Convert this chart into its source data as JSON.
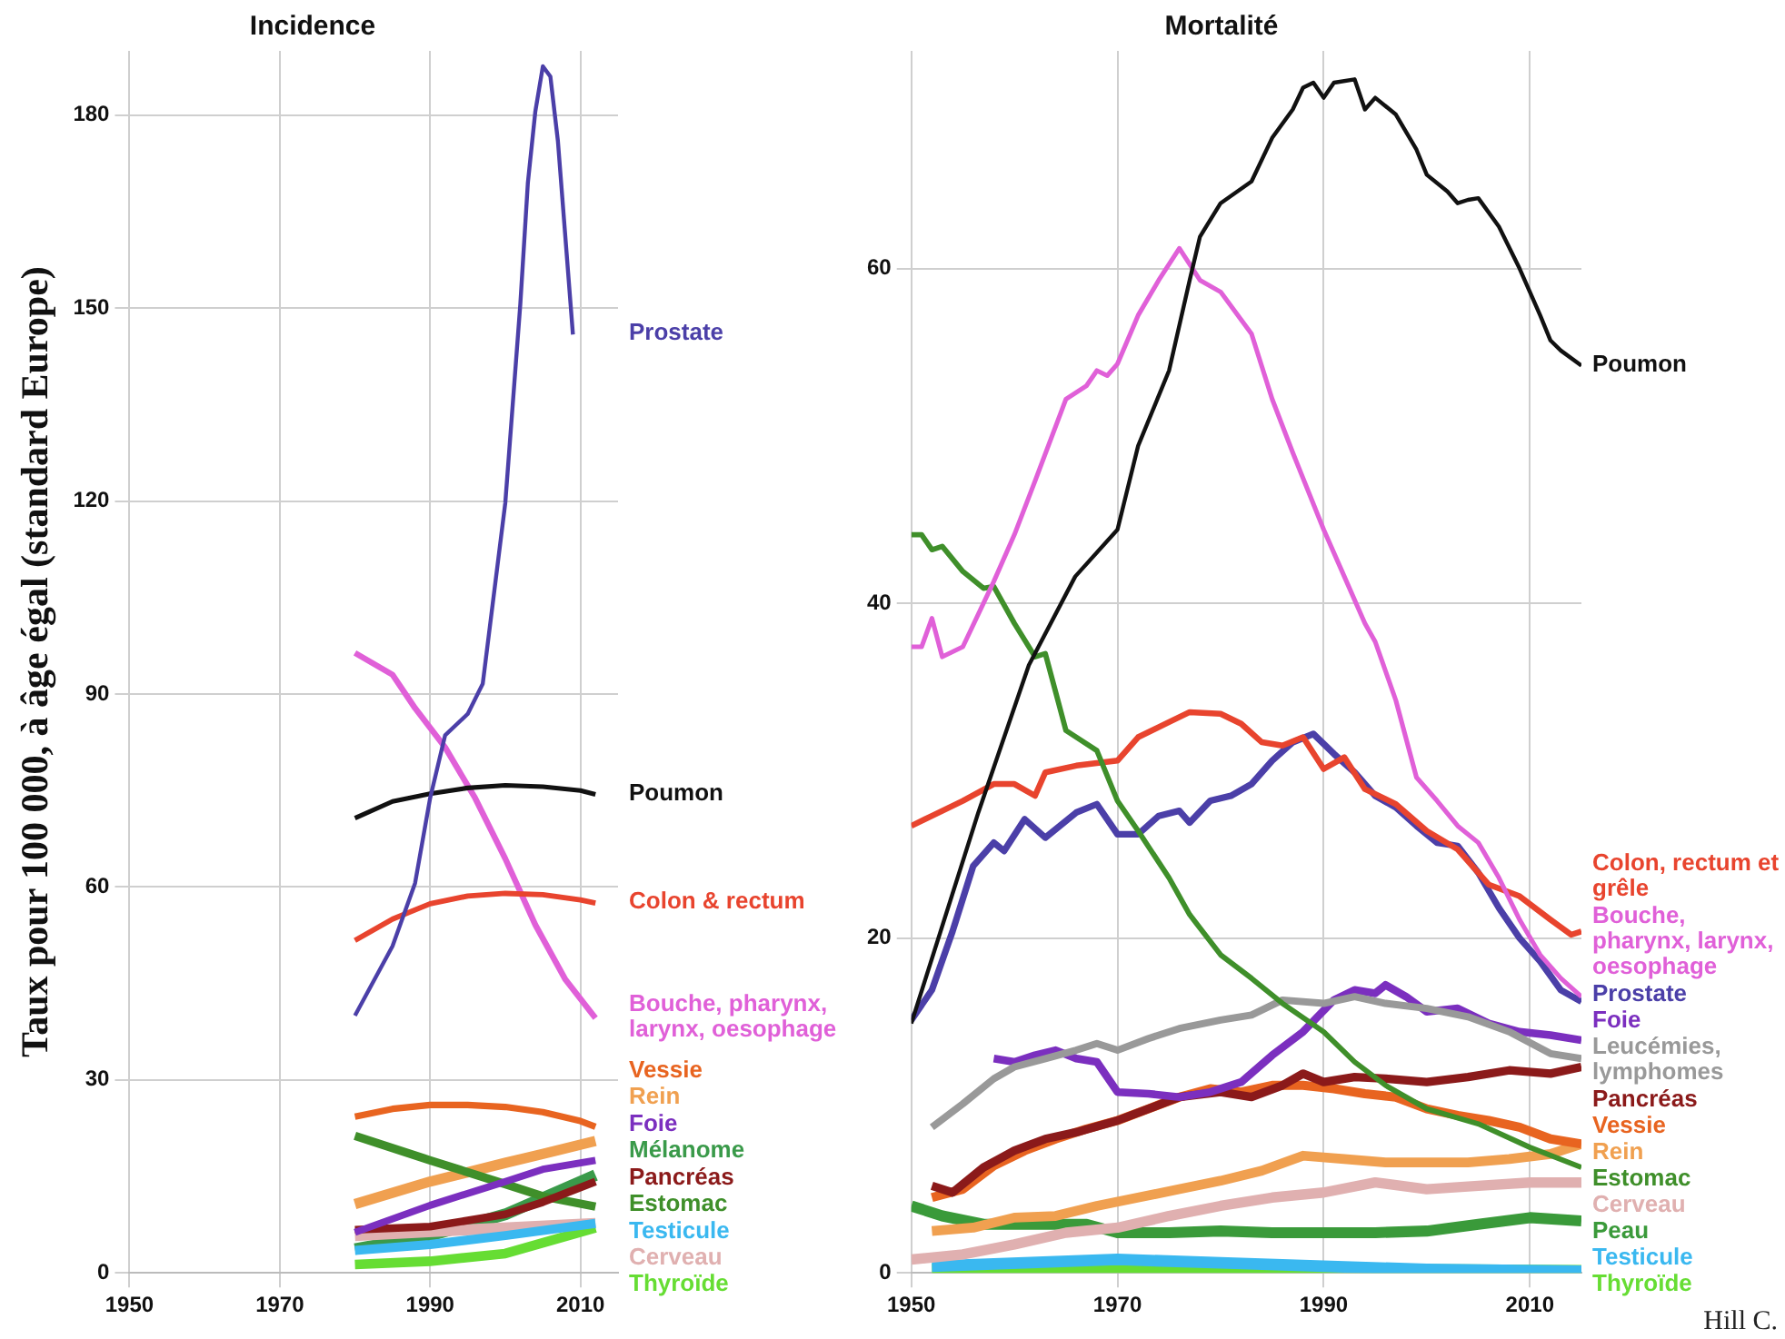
{
  "chart_data": [
    {
      "type": "line",
      "title": "Incidence",
      "ylabel": "Taux pour 100 000, à âge égal (standard Europe)",
      "xlim": [
        1950,
        2015
      ],
      "xticks": [
        1950,
        1970,
        1990,
        2010
      ],
      "ylim": [
        0,
        190
      ],
      "yticks": [
        0,
        30,
        60,
        90,
        120,
        150,
        180
      ],
      "grid": true,
      "legend": false,
      "series": [
        {
          "name": "Prostate",
          "color": "#4b3fa8",
          "x": [
            1980,
            1985,
            1988,
            1990,
            1992,
            1995,
            1997,
            2000,
            2002,
            2003,
            2004,
            2005,
            2006,
            2007,
            2009
          ],
          "values": [
            40,
            50.8,
            60.6,
            73.8,
            83.6,
            86.9,
            91.6,
            119.7,
            150.6,
            169.4,
            180.6,
            187.6,
            186,
            176,
            145.9
          ]
        },
        {
          "name": "Poumon",
          "color": "#111111",
          "x": [
            1980,
            1985,
            1990,
            1995,
            2000,
            2005,
            2010,
            2012
          ],
          "values": [
            70.7,
            73.3,
            74.5,
            75.4,
            75.8,
            75.6,
            75,
            74.4
          ]
        },
        {
          "name": "Colon & rectum",
          "color": "#e8442e",
          "x": [
            1980,
            1985,
            1990,
            1995,
            2000,
            2005,
            2010,
            2012
          ],
          "values": [
            51.7,
            55,
            57.4,
            58.6,
            59,
            58.8,
            58,
            57.5
          ]
        },
        {
          "name": "Bouche, pharynx, larynx, oesophage",
          "color": "#e060d8",
          "x": [
            1980,
            1985,
            1988,
            1992,
            1996,
            2000,
            2004,
            2008,
            2012
          ],
          "values": [
            96.4,
            93,
            87.8,
            81.7,
            73.8,
            64.4,
            54.1,
            45.6,
            39.6
          ]
        },
        {
          "name": "Vessie",
          "color": "#e86420",
          "x": [
            1980,
            1985,
            1990,
            1995,
            2000,
            2005,
            2010,
            2012
          ],
          "values": [
            24.3,
            25.5,
            26.1,
            26.1,
            25.8,
            25,
            23.6,
            22.7
          ]
        },
        {
          "name": "Foie",
          "color": "#7b2fbf",
          "x": [
            1980,
            1990,
            2000,
            2005,
            2012
          ],
          "values": [
            6.3,
            10.5,
            14.2,
            16.1,
            17.5
          ]
        },
        {
          "name": "Pancréas",
          "color": "#8b1a1a",
          "x": [
            1980,
            1990,
            2000,
            2005,
            2012
          ],
          "values": [
            6.7,
            7.2,
            9.1,
            11,
            14.2
          ]
        },
        {
          "name": "Estomac",
          "color": "#3f8f2a",
          "x": [
            1980,
            1990,
            2000,
            2005,
            2012
          ],
          "values": [
            21.3,
            17.5,
            13.8,
            11.9,
            10.3
          ]
        },
        {
          "name": "Testicule",
          "color": "#3ab8f0",
          "x": [
            1980,
            1990,
            2000,
            2012
          ],
          "values": [
            3.5,
            4.4,
            5.8,
            7.7
          ]
        },
        {
          "name": "Thyroïde",
          "color": "#66dd33",
          "x": [
            1980,
            1990,
            2000,
            2012
          ],
          "values": [
            1.3,
            1.8,
            3,
            7
          ]
        },
        {
          "name": "Rein",
          "color": "#f0a050",
          "x": [
            1980,
            1990,
            2000,
            2005,
            2012
          ],
          "values": [
            10.7,
            14.2,
            17.1,
            18.5,
            20.5
          ]
        },
        {
          "name": "Cerveau",
          "color": "#e0b0b0",
          "x": [
            1980,
            2012
          ],
          "values": [
            5.8,
            7.7
          ]
        },
        {
          "name": "Mélanome",
          "color": "#3a9a4a",
          "x": [
            1980,
            1990,
            2000,
            2012
          ],
          "values": [
            3.7,
            5.8,
            9.1,
            15.2
          ]
        }
      ]
    },
    {
      "type": "line",
      "title": "Mortalité",
      "xlim": [
        1950,
        2015
      ],
      "xticks": [
        1950,
        1970,
        1990,
        2010
      ],
      "ylim": [
        0,
        73
      ],
      "yticks": [
        0,
        20,
        40,
        60
      ],
      "grid": true,
      "legend": false,
      "annotations": [
        "Hill C."
      ],
      "series": [
        {
          "name": "Poumon",
          "color": "#111111",
          "x": [
            1950,
            1956.5,
            1961.4,
            1965.9,
            1970,
            1972,
            1975,
            1977,
            1978,
            1980,
            1983,
            1985,
            1987,
            1988,
            1989,
            1990,
            1991,
            1993,
            1994,
            1995,
            1997,
            1999,
            2000,
            2002,
            2003,
            2004,
            2005,
            2007,
            2009,
            2010,
            2011,
            2012,
            2013,
            2015
          ],
          "values": [
            14.9,
            27.5,
            36.3,
            41.6,
            44.4,
            49.4,
            53.9,
            59.3,
            61.9,
            63.9,
            65.2,
            67.8,
            69.5,
            70.8,
            71.1,
            70.2,
            71.1,
            71.3,
            69.5,
            70.2,
            69.2,
            67.1,
            65.6,
            64.6,
            63.9,
            64.1,
            64.2,
            62.5,
            60,
            58.6,
            57.2,
            55.7,
            55.1,
            54.2
          ]
        },
        {
          "name": "Bouche, pharynx, larynx, oesophage",
          "color": "#e060d8",
          "x": [
            1950,
            1951,
            1952,
            1953,
            1955,
            1958,
            1960,
            1962,
            1965,
            1967,
            1968,
            1969,
            1970,
            1972,
            1974,
            1976,
            1978,
            1980,
            1983,
            1985,
            1987,
            1990,
            1992,
            1994,
            1995,
            1997,
            1999,
            2001,
            2003,
            2005,
            2007,
            2009,
            2011,
            2013,
            2015
          ],
          "values": [
            37.4,
            37.4,
            39.1,
            36.8,
            37.4,
            41.3,
            44.1,
            47.3,
            52.2,
            53,
            53.9,
            53.6,
            54.3,
            57.2,
            59.3,
            61.2,
            59.3,
            58.6,
            56.1,
            52.2,
            49,
            44.4,
            41.6,
            38.8,
            37.7,
            34.2,
            29.6,
            28.2,
            26.7,
            25.7,
            23.6,
            21.1,
            19,
            17.6,
            16.5
          ]
        },
        {
          "name": "Estomac",
          "color": "#3f8f2a",
          "x": [
            1950,
            1951,
            1952,
            1953,
            1955,
            1957,
            1958,
            1960,
            1962,
            1963,
            1965,
            1968,
            1970,
            1972,
            1975,
            1977,
            1980,
            1983,
            1986,
            1990,
            1993,
            1996,
            2000,
            2005,
            2010,
            2015
          ],
          "values": [
            44.1,
            44.1,
            43.2,
            43.4,
            41.9,
            40.9,
            41,
            38.8,
            36.8,
            37,
            32.4,
            31.2,
            28.2,
            26.4,
            23.6,
            21.4,
            19,
            17.6,
            16.1,
            14.4,
            12.6,
            11.2,
            9.8,
            8.9,
            7.5,
            6.3
          ]
        },
        {
          "name": "Colon, rectum et grêle",
          "color": "#e8442e",
          "x": [
            1950,
            1952,
            1955,
            1958,
            1960,
            1962,
            1963,
            1966,
            1970,
            1972,
            1975,
            1977,
            1980,
            1982,
            1984,
            1986,
            1988,
            1990,
            1992,
            1994,
            1997,
            2000,
            2003,
            2006,
            2009,
            2012,
            2014,
            2015
          ],
          "values": [
            26.7,
            27.3,
            28.2,
            29.2,
            29.2,
            28.5,
            29.9,
            30.3,
            30.6,
            32,
            32.9,
            33.5,
            33.4,
            32.8,
            31.7,
            31.5,
            32,
            30.1,
            30.8,
            28.9,
            28,
            26.4,
            25.3,
            23.2,
            22.5,
            21.1,
            20.2,
            20.4
          ]
        },
        {
          "name": "Prostate",
          "color": "#4b3fa8",
          "x": [
            1950,
            1952,
            1954,
            1956,
            1958,
            1959,
            1961,
            1963,
            1966,
            1968,
            1970,
            1972,
            1974,
            1976,
            1977,
            1979,
            1981,
            1983,
            1985,
            1987,
            1989,
            1991,
            1993,
            1995,
            1997,
            1999,
            2001,
            2003,
            2005,
            2007,
            2009,
            2011,
            2013,
            2015
          ],
          "values": [
            15.1,
            16.9,
            20.4,
            24.3,
            25.7,
            25.2,
            27.1,
            26,
            27.5,
            28,
            26.2,
            26.2,
            27.3,
            27.6,
            26.9,
            28.2,
            28.5,
            29.2,
            30.6,
            31.7,
            32.2,
            31,
            29.9,
            28.5,
            27.8,
            26.7,
            25.7,
            25.5,
            23.9,
            21.8,
            20,
            18.6,
            16.9,
            16.2
          ]
        },
        {
          "name": "Leucémies, lymphomes",
          "color": "#999999",
          "x": [
            1952,
            1955,
            1958,
            1960,
            1963,
            1966,
            1968,
            1970,
            1973,
            1976,
            1980,
            1983,
            1986,
            1990,
            1993,
            1996,
            2000,
            2004,
            2008,
            2012,
            2015
          ],
          "values": [
            8.7,
            10.1,
            11.6,
            12.3,
            12.8,
            13.3,
            13.7,
            13.3,
            14,
            14.6,
            15.1,
            15.4,
            16.3,
            16.1,
            16.5,
            16.1,
            15.8,
            15.3,
            14.4,
            13.1,
            12.8
          ]
        },
        {
          "name": "Foie",
          "color": "#7b2fbf",
          "x": [
            1958,
            1960,
            1962,
            1964,
            1966,
            1968,
            1970,
            1973,
            1976,
            1979,
            1982,
            1985,
            1988,
            1991,
            1993,
            1995,
            1996,
            1998,
            2000,
            2003,
            2006,
            2009,
            2012,
            2015
          ],
          "values": [
            12.8,
            12.6,
            13,
            13.3,
            12.8,
            12.6,
            10.8,
            10.7,
            10.5,
            10.8,
            11.4,
            13,
            14.4,
            16.3,
            16.9,
            16.7,
            17.2,
            16.5,
            15.6,
            15.8,
            14.9,
            14.4,
            14.2,
            13.9
          ]
        },
        {
          "name": "Pancréas",
          "color": "#8b1a1a",
          "x": [
            1952,
            1954,
            1957,
            1960,
            1963,
            1966,
            1970,
            1973,
            1976,
            1980,
            1983,
            1986,
            1988,
            1990,
            1993,
            1996,
            2000,
            2004,
            2008,
            2012,
            2015
          ],
          "values": [
            5.2,
            4.8,
            6.3,
            7.3,
            8,
            8.4,
            9.1,
            9.8,
            10.5,
            10.8,
            10.5,
            11.2,
            11.9,
            11.4,
            11.7,
            11.6,
            11.4,
            11.7,
            12.1,
            11.9,
            12.3
          ]
        },
        {
          "name": "Vessie",
          "color": "#e86420",
          "x": [
            1952,
            1955,
            1958,
            1961,
            1964,
            1967,
            1970,
            1973,
            1976,
            1979,
            1982,
            1985,
            1988,
            1991,
            1994,
            1997,
            2000,
            2003,
            2006,
            2009,
            2012,
            2015
          ],
          "values": [
            4.5,
            5,
            6.4,
            7.3,
            8,
            8.6,
            9.1,
            9.8,
            10.5,
            11,
            10.8,
            11.2,
            11.2,
            11,
            10.7,
            10.5,
            9.8,
            9.4,
            9.1,
            8.7,
            8,
            7.7
          ]
        },
        {
          "name": "Rein",
          "color": "#f0a050",
          "x": [
            1952,
            1956,
            1960,
            1964,
            1968,
            1972,
            1976,
            1980,
            1984,
            1988,
            1992,
            1996,
            2000,
            2004,
            2008,
            2012,
            2015
          ],
          "values": [
            2.5,
            2.7,
            3.3,
            3.4,
            4,
            4.5,
            5,
            5.5,
            6.1,
            7,
            6.8,
            6.6,
            6.6,
            6.6,
            6.8,
            7.1,
            7.7
          ]
        },
        {
          "name": "Cerveau",
          "color": "#e0b0b0",
          "x": [
            1950,
            1955,
            1960,
            1965,
            1970,
            1975,
            1980,
            1985,
            1990,
            1995,
            2000,
            2005,
            2010,
            2015
          ],
          "values": [
            0.8,
            1.1,
            1.7,
            2.4,
            2.7,
            3.4,
            4,
            4.5,
            4.8,
            5.4,
            5,
            5.2,
            5.4,
            5.4
          ]
        },
        {
          "name": "Peau",
          "color": "#3a9a3a",
          "x": [
            1950,
            1953,
            1957,
            1962,
            1967,
            1970,
            1975,
            1980,
            1985,
            1990,
            1995,
            2000,
            2005,
            2010,
            2015
          ],
          "values": [
            4,
            3.4,
            2.9,
            2.9,
            2.9,
            2.4,
            2.4,
            2.5,
            2.4,
            2.4,
            2.4,
            2.5,
            2.9,
            3.3,
            3.1
          ]
        },
        {
          "name": "Testicule",
          "color": "#3ab8f0",
          "x": [
            1952,
            1970,
            1980,
            1990,
            2000,
            2015
          ],
          "values": [
            0.4,
            0.8,
            0.6,
            0.4,
            0.2,
            0.1
          ]
        },
        {
          "name": "Thyroïde",
          "color": "#66dd33",
          "x": [
            1952,
            1970,
            1990,
            2015
          ],
          "values": [
            0.2,
            0.3,
            0.2,
            0.1
          ]
        }
      ]
    }
  ]
}
